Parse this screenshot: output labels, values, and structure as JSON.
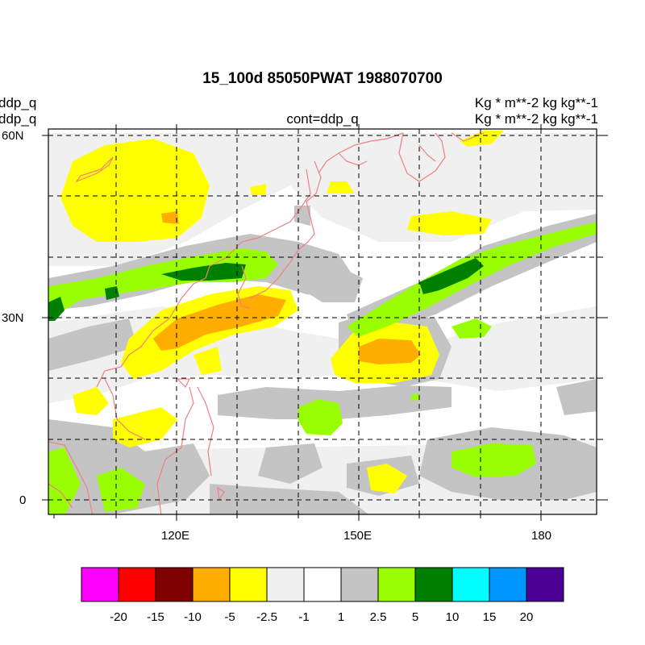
{
  "title": "15_100d 85050PWAT  1988070700",
  "left_labels": [
    "ddp_q",
    "ddp_q"
  ],
  "right_labels": [
    "Kg  * m**-2 kg kg**-1",
    "Kg  * m**-2 kg kg**-1"
  ],
  "center_label": "cont=ddp_q",
  "lat_labels": [
    "60N",
    "30N",
    "0"
  ],
  "lon_labels": [
    "120E",
    "150E",
    "180"
  ],
  "colorbar": {
    "colors": [
      "#ff00ff",
      "#ff0000",
      "#7f0000",
      "#ffae00",
      "#ffff00",
      "#f0f0f0",
      "#ffffff",
      "#c4c4c4",
      "#99ff00",
      "#008000",
      "#00ffff",
      "#0096ff",
      "#4b0096"
    ],
    "labels": [
      "-20",
      "-15",
      "-10",
      "-5",
      "-2.5",
      "-1",
      "1",
      "2.5",
      "5",
      "10",
      "15",
      "20"
    ]
  },
  "colors": {
    "coast": "#f08080",
    "grid": "#000000"
  }
}
